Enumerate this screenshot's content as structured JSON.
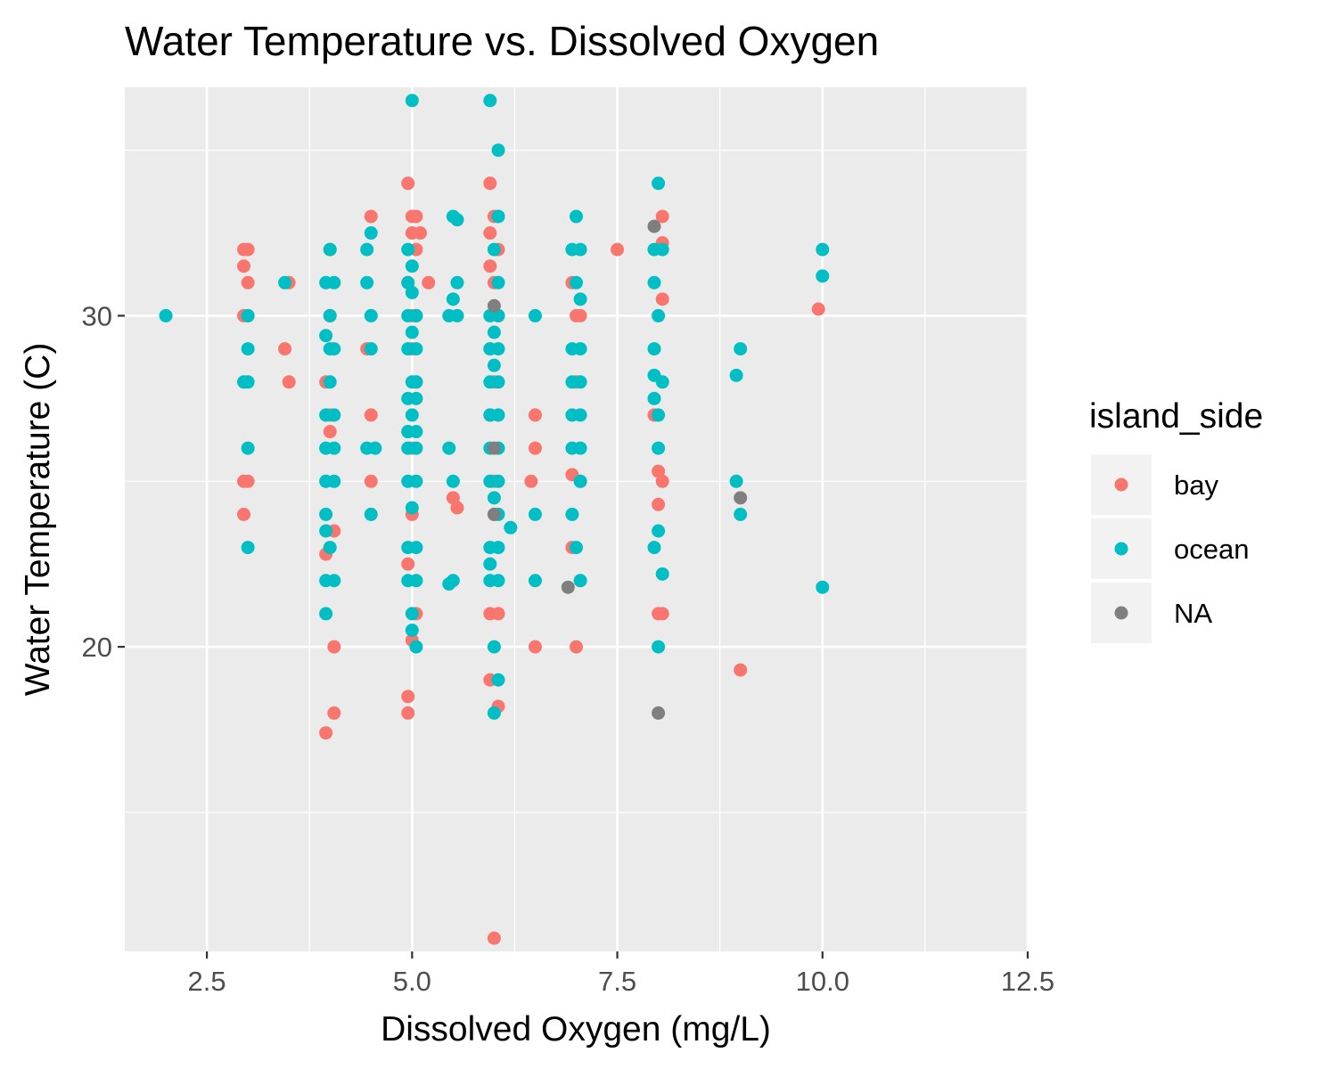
{
  "chart_data": {
    "type": "scatter",
    "title": "Water Temperature vs. Dissolved Oxygen",
    "xlabel": "Dissolved Oxygen (mg/L)",
    "ylabel": "Water Temperature (C)",
    "xlim": [
      1.5,
      12.5
    ],
    "ylim": [
      10.8,
      36.9
    ],
    "x_ticks": [
      2.5,
      5.0,
      7.5,
      10.0,
      12.5
    ],
    "x_tick_labels": [
      "2.5",
      "5.0",
      "7.5",
      "10.0",
      "12.5"
    ],
    "y_ticks": [
      20,
      30
    ],
    "y_tick_labels": [
      "20",
      "30"
    ],
    "grid": true,
    "panel_background": "#ebebeb",
    "grid_color": "#ffffff",
    "legend": {
      "title": "island_side",
      "position": "right",
      "entries": [
        {
          "label": "bay",
          "color": "#f8766d"
        },
        {
          "label": "ocean",
          "color": "#00bfc4"
        },
        {
          "label": "NA",
          "color": "#7f7f7f"
        }
      ]
    },
    "series": [
      {
        "name": "bay",
        "color": "#f8766d",
        "points": [
          [
            2.95,
            32
          ],
          [
            3.0,
            32
          ],
          [
            2.95,
            31.5
          ],
          [
            3.0,
            31
          ],
          [
            2.95,
            30
          ],
          [
            3.0,
            30
          ],
          [
            2.95,
            25
          ],
          [
            3.0,
            25
          ],
          [
            2.95,
            24
          ],
          [
            3.5,
            31
          ],
          [
            3.45,
            29
          ],
          [
            3.5,
            28
          ],
          [
            4.0,
            32
          ],
          [
            4.0,
            30
          ],
          [
            3.95,
            28
          ],
          [
            4.0,
            27
          ],
          [
            4.0,
            26.5
          ],
          [
            4.05,
            23.5
          ],
          [
            3.95,
            22.8
          ],
          [
            4.05,
            20
          ],
          [
            4.05,
            18
          ],
          [
            3.95,
            17.4
          ],
          [
            4.5,
            33
          ],
          [
            4.45,
            29
          ],
          [
            4.5,
            27
          ],
          [
            4.5,
            25
          ],
          [
            4.95,
            34
          ],
          [
            5.0,
            33
          ],
          [
            5.05,
            33
          ],
          [
            5.0,
            32.5
          ],
          [
            5.05,
            32
          ],
          [
            4.95,
            31
          ],
          [
            5.0,
            30
          ],
          [
            5.05,
            30
          ],
          [
            5.0,
            29
          ],
          [
            5.05,
            28
          ],
          [
            4.95,
            26.5
          ],
          [
            5.0,
            26
          ],
          [
            5.0,
            24
          ],
          [
            4.95,
            22.5
          ],
          [
            5.05,
            21
          ],
          [
            5.0,
            20.2
          ],
          [
            4.95,
            18.5
          ],
          [
            4.95,
            18
          ],
          [
            5.1,
            32.5
          ],
          [
            5.2,
            31
          ],
          [
            5.5,
            24.5
          ],
          [
            5.55,
            24.2
          ],
          [
            5.95,
            34
          ],
          [
            6.0,
            33
          ],
          [
            6.05,
            33
          ],
          [
            5.95,
            32.5
          ],
          [
            6.05,
            32
          ],
          [
            5.95,
            31.5
          ],
          [
            6.0,
            31
          ],
          [
            6.05,
            30
          ],
          [
            5.95,
            29
          ],
          [
            6.0,
            28
          ],
          [
            5.95,
            27
          ],
          [
            6.0,
            25
          ],
          [
            6.0,
            24
          ],
          [
            5.95,
            21
          ],
          [
            6.05,
            21
          ],
          [
            5.95,
            19
          ],
          [
            6.05,
            18.2
          ],
          [
            6.0,
            11.2
          ],
          [
            6.5,
            27
          ],
          [
            6.5,
            26
          ],
          [
            6.45,
            25
          ],
          [
            6.5,
            20
          ],
          [
            6.95,
            31
          ],
          [
            7.0,
            30
          ],
          [
            7.05,
            30
          ],
          [
            7.0,
            28
          ],
          [
            6.95,
            25.2
          ],
          [
            7.05,
            25
          ],
          [
            6.95,
            23
          ],
          [
            7.05,
            22
          ],
          [
            7.0,
            20
          ],
          [
            7.5,
            32
          ],
          [
            8.05,
            33
          ],
          [
            8.05,
            32.2
          ],
          [
            8.05,
            30.5
          ],
          [
            7.95,
            27
          ],
          [
            8.0,
            25.3
          ],
          [
            8.05,
            25
          ],
          [
            8.0,
            24.3
          ],
          [
            8.0,
            21
          ],
          [
            8.05,
            21
          ],
          [
            9.0,
            19.3
          ],
          [
            9.95,
            30.2
          ]
        ]
      },
      {
        "name": "ocean",
        "color": "#00bfc4",
        "points": [
          [
            2.0,
            30
          ],
          [
            3.0,
            30
          ],
          [
            3.0,
            29
          ],
          [
            3.0,
            28
          ],
          [
            2.95,
            28
          ],
          [
            3.0,
            26
          ],
          [
            3.0,
            23
          ],
          [
            3.45,
            31
          ],
          [
            4.0,
            32
          ],
          [
            3.95,
            31
          ],
          [
            4.05,
            31
          ],
          [
            4.0,
            30
          ],
          [
            3.95,
            29.4
          ],
          [
            4.0,
            29
          ],
          [
            4.05,
            29
          ],
          [
            4.0,
            28
          ],
          [
            3.95,
            27
          ],
          [
            4.05,
            27
          ],
          [
            3.95,
            26
          ],
          [
            4.05,
            26
          ],
          [
            3.95,
            25
          ],
          [
            4.05,
            25
          ],
          [
            3.95,
            24
          ],
          [
            3.95,
            23.5
          ],
          [
            4.0,
            23
          ],
          [
            3.95,
            22
          ],
          [
            4.05,
            22
          ],
          [
            3.95,
            21
          ],
          [
            4.5,
            32.5
          ],
          [
            4.45,
            32
          ],
          [
            4.45,
            31
          ],
          [
            4.5,
            30
          ],
          [
            4.5,
            29
          ],
          [
            4.45,
            26
          ],
          [
            4.55,
            26
          ],
          [
            4.5,
            24
          ],
          [
            5.0,
            36.5
          ],
          [
            4.95,
            32
          ],
          [
            5.0,
            31.5
          ],
          [
            4.95,
            31
          ],
          [
            5.0,
            30.7
          ],
          [
            4.95,
            30
          ],
          [
            5.05,
            30
          ],
          [
            5.0,
            29.5
          ],
          [
            4.95,
            29
          ],
          [
            5.05,
            29
          ],
          [
            5.0,
            28
          ],
          [
            5.05,
            28
          ],
          [
            4.95,
            27.5
          ],
          [
            5.05,
            27.5
          ],
          [
            5.0,
            27
          ],
          [
            4.95,
            26.5
          ],
          [
            5.05,
            26.5
          ],
          [
            4.95,
            26
          ],
          [
            5.05,
            26
          ],
          [
            4.95,
            25
          ],
          [
            5.05,
            25
          ],
          [
            5.0,
            24.2
          ],
          [
            4.95,
            23
          ],
          [
            5.05,
            23
          ],
          [
            4.95,
            22
          ],
          [
            5.05,
            22
          ],
          [
            5.0,
            21
          ],
          [
            5.0,
            20.5
          ],
          [
            5.05,
            20
          ],
          [
            5.5,
            33
          ],
          [
            5.55,
            32.9
          ],
          [
            5.55,
            31
          ],
          [
            5.5,
            30.5
          ],
          [
            5.45,
            30
          ],
          [
            5.55,
            30
          ],
          [
            5.45,
            26
          ],
          [
            5.5,
            25
          ],
          [
            5.5,
            22
          ],
          [
            5.45,
            21.9
          ],
          [
            5.95,
            36.5
          ],
          [
            6.05,
            35
          ],
          [
            6.05,
            33
          ],
          [
            6.0,
            32
          ],
          [
            6.05,
            31
          ],
          [
            5.95,
            30
          ],
          [
            6.05,
            30
          ],
          [
            6.0,
            29.5
          ],
          [
            5.95,
            29
          ],
          [
            6.05,
            29
          ],
          [
            6.0,
            28.5
          ],
          [
            5.95,
            28
          ],
          [
            6.05,
            28
          ],
          [
            5.95,
            27
          ],
          [
            6.05,
            27
          ],
          [
            5.95,
            26
          ],
          [
            6.05,
            26
          ],
          [
            5.95,
            25
          ],
          [
            6.05,
            25
          ],
          [
            6.0,
            24.5
          ],
          [
            6.05,
            24
          ],
          [
            5.95,
            23
          ],
          [
            6.05,
            23
          ],
          [
            5.95,
            22.5
          ],
          [
            5.95,
            22
          ],
          [
            6.05,
            22
          ],
          [
            6.0,
            20
          ],
          [
            6.05,
            19
          ],
          [
            6.0,
            18
          ],
          [
            6.2,
            23.6
          ],
          [
            6.5,
            30
          ],
          [
            6.5,
            24
          ],
          [
            6.5,
            22
          ],
          [
            7.0,
            33
          ],
          [
            6.95,
            32
          ],
          [
            7.05,
            32
          ],
          [
            7.0,
            31
          ],
          [
            7.05,
            30.5
          ],
          [
            6.95,
            29
          ],
          [
            7.05,
            29
          ],
          [
            6.95,
            28
          ],
          [
            7.05,
            28
          ],
          [
            6.95,
            27
          ],
          [
            7.05,
            27
          ],
          [
            6.95,
            26
          ],
          [
            7.05,
            26
          ],
          [
            7.05,
            25
          ],
          [
            6.95,
            24
          ],
          [
            7.0,
            23
          ],
          [
            7.05,
            22
          ],
          [
            8.0,
            34
          ],
          [
            7.95,
            32
          ],
          [
            8.05,
            32
          ],
          [
            7.95,
            31
          ],
          [
            8.0,
            30
          ],
          [
            7.95,
            29
          ],
          [
            7.95,
            28.2
          ],
          [
            8.05,
            28
          ],
          [
            7.95,
            27.5
          ],
          [
            8.0,
            27
          ],
          [
            8.0,
            26
          ],
          [
            8.0,
            23.5
          ],
          [
            7.95,
            23
          ],
          [
            8.05,
            22.2
          ],
          [
            8.0,
            20
          ],
          [
            9.0,
            29
          ],
          [
            8.95,
            28.2
          ],
          [
            8.95,
            25
          ],
          [
            9.0,
            24
          ],
          [
            10.0,
            32
          ],
          [
            10.0,
            31.2
          ],
          [
            10.0,
            21.8
          ]
        ]
      },
      {
        "name": "NA",
        "color": "#7f7f7f",
        "points": [
          [
            7.95,
            32.7
          ],
          [
            6.0,
            30.3
          ],
          [
            6.0,
            26
          ],
          [
            6.0,
            24
          ],
          [
            6.9,
            21.8
          ],
          [
            9.0,
            24.5
          ],
          [
            8.0,
            18
          ]
        ]
      }
    ]
  }
}
